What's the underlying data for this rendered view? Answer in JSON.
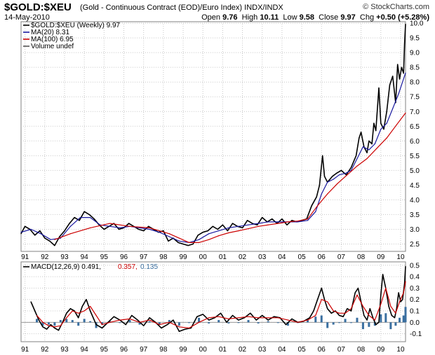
{
  "header": {
    "ticker": "$GOLD:$XEU",
    "description": "(Gold - Continuous Contract (EOD)/Euro Index) INDX/INDX",
    "brand": "© StockCharts.com",
    "date": "14-May-2010",
    "open_label": "Open",
    "open_value": "9.76",
    "high_label": "High",
    "high_value": "10.11",
    "low_label": "Low",
    "low_value": "9.58",
    "close_label": "Close",
    "close_value": "9.97",
    "chg_label": "Chg",
    "chg_value": "+0.50 (+5.28%)"
  },
  "colors": {
    "price": "#000000",
    "ma20": "#1a1aa0",
    "ma100": "#cc0000",
    "macd": "#000000",
    "signal": "#cc0000",
    "hist": "#3a6fa0",
    "grid": "#c8c8c8"
  },
  "chart_data": [
    {
      "type": "line",
      "title": "$GOLD:$XEU (Weekly)",
      "legend": [
        {
          "label": "$GOLD:$XEU (Weekly) 9.97",
          "color": "#000000"
        },
        {
          "label": "MA(20) 8.31",
          "color": "#1a1aa0"
        },
        {
          "label": "MA(100) 6.95",
          "color": "#cc0000"
        },
        {
          "label": "Volume undef",
          "color": "#555555"
        }
      ],
      "xlim": [
        1991.0,
        2010.45
      ],
      "ylim": [
        2.25,
        10.05
      ],
      "yticks": [
        2.5,
        3.0,
        3.5,
        4.0,
        4.5,
        5.0,
        5.5,
        6.0,
        6.5,
        7.0,
        7.5,
        8.0,
        8.5,
        9.0,
        9.5,
        10.0
      ],
      "ytick_labels": [
        "2.5",
        "3.0",
        "3.5",
        "4.0",
        "4.5",
        "5.0",
        "5.5",
        "6.0",
        "6.5",
        "7.0",
        "7.5",
        "8.0",
        "8.5",
        "9.0",
        "9.5",
        "10.0"
      ],
      "xticks": [
        1991,
        1992,
        1993,
        1994,
        1995,
        1996,
        1997,
        1998,
        1999,
        2000,
        2001,
        2002,
        2003,
        2004,
        2005,
        2006,
        2007,
        2008,
        2009,
        2010
      ],
      "xtick_labels": [
        "91",
        "92",
        "93",
        "94",
        "95",
        "96",
        "97",
        "98",
        "99",
        "00",
        "01",
        "02",
        "03",
        "04",
        "05",
        "06",
        "07",
        "08",
        "09",
        "10"
      ],
      "series": [
        {
          "name": "$GOLD:$XEU",
          "color": "#000000",
          "x": [
            1991.0,
            1991.2,
            1991.45,
            1991.7,
            1991.95,
            1992.2,
            1992.45,
            1992.7,
            1992.95,
            1993.2,
            1993.45,
            1993.7,
            1993.95,
            1994.2,
            1994.45,
            1994.7,
            1994.95,
            1995.2,
            1995.45,
            1995.7,
            1995.95,
            1996.2,
            1996.45,
            1996.7,
            1996.95,
            1997.2,
            1997.45,
            1997.7,
            1997.95,
            1998.2,
            1998.45,
            1998.7,
            1998.95,
            1999.2,
            1999.45,
            1999.7,
            1999.95,
            2000.2,
            2000.45,
            2000.7,
            2000.95,
            2001.2,
            2001.45,
            2001.7,
            2001.95,
            2002.2,
            2002.45,
            2002.7,
            2002.95,
            2003.2,
            2003.45,
            2003.7,
            2003.95,
            2004.2,
            2004.45,
            2004.7,
            2004.95,
            2005.2,
            2005.45,
            2005.7,
            2005.95,
            2006.1,
            2006.25,
            2006.35,
            2006.5,
            2006.75,
            2006.95,
            2007.2,
            2007.45,
            2007.7,
            2007.95,
            2008.1,
            2008.2,
            2008.35,
            2008.5,
            2008.6,
            2008.75,
            2008.85,
            2008.95,
            2009.1,
            2009.2,
            2009.35,
            2009.5,
            2009.65,
            2009.8,
            2009.95,
            2010.05,
            2010.15,
            2010.25,
            2010.35,
            2010.4,
            2010.45
          ],
          "y": [
            2.85,
            3.1,
            3.0,
            2.8,
            2.95,
            2.7,
            2.6,
            2.45,
            2.75,
            2.95,
            3.2,
            3.4,
            3.3,
            3.6,
            3.5,
            3.35,
            3.15,
            3.0,
            3.1,
            3.2,
            3.0,
            3.05,
            3.2,
            3.1,
            3.0,
            2.95,
            3.1,
            3.0,
            2.9,
            2.95,
            2.6,
            2.7,
            2.55,
            2.5,
            2.45,
            2.5,
            2.8,
            2.9,
            2.95,
            3.1,
            3.0,
            3.15,
            2.95,
            3.2,
            3.1,
            3.05,
            3.3,
            3.2,
            3.15,
            3.4,
            3.25,
            3.35,
            3.2,
            3.35,
            3.15,
            3.3,
            3.25,
            3.3,
            3.35,
            3.8,
            4.1,
            4.5,
            5.5,
            4.8,
            4.6,
            4.8,
            4.9,
            5.0,
            4.85,
            5.1,
            5.5,
            6.1,
            6.3,
            5.8,
            5.6,
            6.0,
            5.9,
            6.6,
            6.35,
            7.8,
            6.6,
            6.4,
            7.0,
            7.9,
            8.2,
            7.3,
            8.6,
            8.1,
            8.5,
            8.3,
            9.3,
            9.97
          ]
        },
        {
          "name": "MA(20)",
          "color": "#1a1aa0",
          "x": [
            1991.0,
            1991.5,
            1992.0,
            1992.5,
            1993.0,
            1993.5,
            1994.0,
            1994.5,
            1995.0,
            1995.5,
            1996.0,
            1996.5,
            1997.0,
            1997.5,
            1998.0,
            1998.5,
            1999.0,
            1999.5,
            2000.0,
            2000.5,
            2001.0,
            2001.5,
            2002.0,
            2002.5,
            2003.0,
            2003.5,
            2004.0,
            2004.5,
            2005.0,
            2005.5,
            2005.9,
            2006.2,
            2006.5,
            2006.8,
            2007.1,
            2007.4,
            2007.7,
            2008.0,
            2008.3,
            2008.6,
            2008.9,
            2009.2,
            2009.5,
            2009.8,
            2010.1,
            2010.45
          ],
          "y": [
            2.9,
            3.0,
            2.85,
            2.65,
            2.7,
            3.1,
            3.4,
            3.4,
            3.15,
            3.1,
            3.05,
            3.1,
            3.05,
            3.0,
            2.9,
            2.75,
            2.6,
            2.55,
            2.65,
            2.85,
            2.95,
            3.05,
            3.1,
            3.15,
            3.2,
            3.25,
            3.25,
            3.25,
            3.25,
            3.3,
            3.6,
            4.2,
            4.6,
            4.7,
            4.85,
            4.9,
            5.0,
            5.4,
            5.8,
            5.7,
            5.9,
            6.4,
            6.6,
            7.1,
            7.6,
            8.31
          ]
        },
        {
          "name": "MA(100)",
          "color": "#cc0000",
          "x": [
            1992.7,
            1993.5,
            1994.5,
            1995.5,
            1996.5,
            1997.5,
            1998.5,
            1999.0,
            1999.5,
            2000.0,
            2000.5,
            2001.0,
            2001.5,
            2002.0,
            2002.5,
            2003.0,
            2003.5,
            2004.0,
            2004.5,
            2005.0,
            2005.5,
            2006.0,
            2006.5,
            2007.0,
            2007.5,
            2008.0,
            2008.5,
            2009.0,
            2009.5,
            2010.0,
            2010.45
          ],
          "y": [
            2.65,
            2.85,
            3.05,
            3.2,
            3.1,
            3.05,
            2.85,
            2.7,
            2.55,
            2.55,
            2.65,
            2.78,
            2.88,
            2.95,
            3.02,
            3.1,
            3.15,
            3.2,
            3.25,
            3.28,
            3.35,
            3.8,
            4.2,
            4.55,
            4.85,
            5.15,
            5.4,
            5.75,
            6.1,
            6.55,
            6.95
          ]
        }
      ]
    },
    {
      "type": "line",
      "title": "MACD(12,26,9)",
      "legend": [
        {
          "label": "MACD(12,26,9) 0.491,",
          "color": "#000000"
        },
        {
          "label": "0.357,",
          "color": "#cc0000"
        },
        {
          "label": "0.135",
          "color": "#3a6fa0"
        }
      ],
      "xlim": [
        1991.0,
        2010.45
      ],
      "ylim": [
        -0.17,
        0.53
      ],
      "yticks": [
        -0.1,
        0.0,
        0.1,
        0.2,
        0.3,
        0.4,
        0.5
      ],
      "ytick_labels": [
        "-0.1",
        "0.0",
        "0.1",
        "0.2",
        "0.3",
        "0.4",
        "0.5"
      ],
      "xticks": [
        1991,
        1992,
        1993,
        1994,
        1995,
        1996,
        1997,
        1998,
        1999,
        2000,
        2001,
        2002,
        2003,
        2004,
        2005,
        2006,
        2007,
        2008,
        2009,
        2010
      ],
      "xtick_labels": [
        "91",
        "92",
        "93",
        "94",
        "95",
        "96",
        "97",
        "98",
        "99",
        "00",
        "01",
        "02",
        "03",
        "04",
        "05",
        "06",
        "07",
        "08",
        "09",
        "10"
      ],
      "series": [
        {
          "name": "MACD",
          "color": "#000000",
          "x": [
            1991.5,
            1991.7,
            1991.9,
            1992.1,
            1992.3,
            1992.5,
            1992.7,
            1992.9,
            1993.1,
            1993.3,
            1993.5,
            1993.7,
            1993.9,
            1994.1,
            1994.3,
            1994.5,
            1994.8,
            1995.1,
            1995.4,
            1995.7,
            1996.0,
            1996.3,
            1996.6,
            1996.9,
            1997.2,
            1997.5,
            1997.8,
            1998.1,
            1998.4,
            1998.7,
            1999.0,
            1999.3,
            1999.6,
            1999.9,
            2000.2,
            2000.5,
            2000.8,
            2001.1,
            2001.4,
            2001.7,
            2002.0,
            2002.3,
            2002.6,
            2002.9,
            2003.2,
            2003.5,
            2003.8,
            2004.1,
            2004.4,
            2004.7,
            2005.0,
            2005.3,
            2005.6,
            2005.8,
            2006.0,
            2006.2,
            2006.35,
            2006.5,
            2006.7,
            2006.9,
            2007.1,
            2007.3,
            2007.5,
            2007.7,
            2007.9,
            2008.05,
            2008.2,
            2008.35,
            2008.5,
            2008.65,
            2008.8,
            2008.95,
            2009.1,
            2009.2,
            2009.3,
            2009.45,
            2009.6,
            2009.75,
            2009.9,
            2010.0,
            2010.1,
            2010.2,
            2010.3,
            2010.4,
            2010.45
          ],
          "y": [
            0.18,
            0.1,
            0.02,
            -0.04,
            -0.06,
            -0.02,
            -0.05,
            -0.07,
            0.0,
            0.08,
            0.12,
            0.1,
            0.04,
            0.14,
            0.2,
            0.1,
            -0.02,
            -0.05,
            0.0,
            0.05,
            0.02,
            -0.02,
            0.06,
            0.02,
            -0.03,
            0.04,
            0.0,
            -0.05,
            -0.02,
            0.02,
            -0.08,
            -0.06,
            -0.05,
            0.05,
            0.07,
            0.02,
            0.04,
            0.08,
            0.0,
            0.06,
            0.02,
            0.04,
            0.08,
            0.02,
            0.06,
            0.02,
            0.05,
            0.04,
            -0.02,
            0.03,
            0.0,
            0.01,
            0.04,
            0.1,
            0.2,
            0.3,
            0.2,
            0.12,
            0.08,
            0.1,
            0.06,
            0.05,
            0.12,
            0.1,
            0.26,
            0.3,
            0.18,
            0.06,
            0.02,
            0.12,
            0.04,
            -0.02,
            0.0,
            0.24,
            0.42,
            0.3,
            0.14,
            0.06,
            0.04,
            0.12,
            0.26,
            0.18,
            0.2,
            0.34,
            0.491
          ]
        },
        {
          "name": "Signal",
          "color": "#cc0000",
          "x": [
            1991.8,
            1992.1,
            1992.4,
            1992.7,
            1993.0,
            1993.3,
            1993.6,
            1993.9,
            1994.2,
            1994.5,
            1994.8,
            1995.1,
            1995.5,
            1996.0,
            1996.5,
            1997.0,
            1997.5,
            1998.0,
            1998.5,
            1999.0,
            1999.5,
            2000.0,
            2000.5,
            2001.0,
            2001.5,
            2002.0,
            2002.5,
            2003.0,
            2003.5,
            2004.0,
            2004.5,
            2005.0,
            2005.5,
            2005.9,
            2006.2,
            2006.5,
            2006.8,
            2007.1,
            2007.4,
            2007.7,
            2008.0,
            2008.3,
            2008.6,
            2008.9,
            2009.2,
            2009.45,
            2009.7,
            2009.95,
            2010.15,
            2010.35,
            2010.45
          ],
          "y": [
            0.06,
            0.0,
            -0.03,
            -0.04,
            -0.03,
            0.04,
            0.1,
            0.08,
            0.1,
            0.14,
            0.06,
            -0.02,
            0.0,
            0.02,
            0.03,
            0.0,
            0.02,
            -0.02,
            0.0,
            -0.04,
            -0.05,
            0.0,
            0.04,
            0.05,
            0.03,
            0.04,
            0.05,
            0.04,
            0.04,
            0.04,
            0.02,
            0.0,
            0.02,
            0.06,
            0.2,
            0.18,
            0.1,
            0.08,
            0.08,
            0.12,
            0.24,
            0.14,
            0.06,
            0.02,
            0.16,
            0.3,
            0.14,
            0.08,
            0.18,
            0.26,
            0.357
          ]
        }
      ],
      "histogram": {
        "name": "Histogram",
        "color": "#3a6fa0",
        "x": [
          1991.8,
          1992.1,
          1992.4,
          1992.7,
          1993.0,
          1993.3,
          1993.6,
          1993.9,
          1994.2,
          1994.5,
          1994.8,
          1995.1,
          1995.5,
          1996.0,
          1996.5,
          1997.0,
          1997.5,
          1998.0,
          1998.5,
          1999.0,
          1999.5,
          2000.0,
          2000.5,
          2001.0,
          2001.5,
          2002.0,
          2002.5,
          2003.0,
          2003.5,
          2004.0,
          2004.5,
          2005.0,
          2005.5,
          2005.9,
          2006.2,
          2006.5,
          2006.8,
          2007.1,
          2007.4,
          2007.7,
          2008.0,
          2008.3,
          2008.6,
          2008.9,
          2009.2,
          2009.45,
          2009.7,
          2009.95,
          2010.15,
          2010.35,
          2010.45
        ],
        "y": [
          0.03,
          -0.03,
          -0.02,
          -0.03,
          0.02,
          0.03,
          0.02,
          -0.03,
          0.03,
          0.01,
          -0.05,
          -0.02,
          0.01,
          0.0,
          0.02,
          -0.02,
          0.01,
          -0.02,
          0.02,
          -0.03,
          0.0,
          0.04,
          -0.01,
          0.02,
          -0.01,
          0.0,
          0.02,
          -0.01,
          0.01,
          0.0,
          -0.03,
          0.0,
          0.02,
          0.05,
          0.06,
          -0.05,
          -0.02,
          0.0,
          0.03,
          0.0,
          0.04,
          -0.06,
          -0.04,
          -0.03,
          0.07,
          0.08,
          -0.06,
          -0.03,
          0.04,
          0.06,
          0.135
        ]
      }
    }
  ]
}
